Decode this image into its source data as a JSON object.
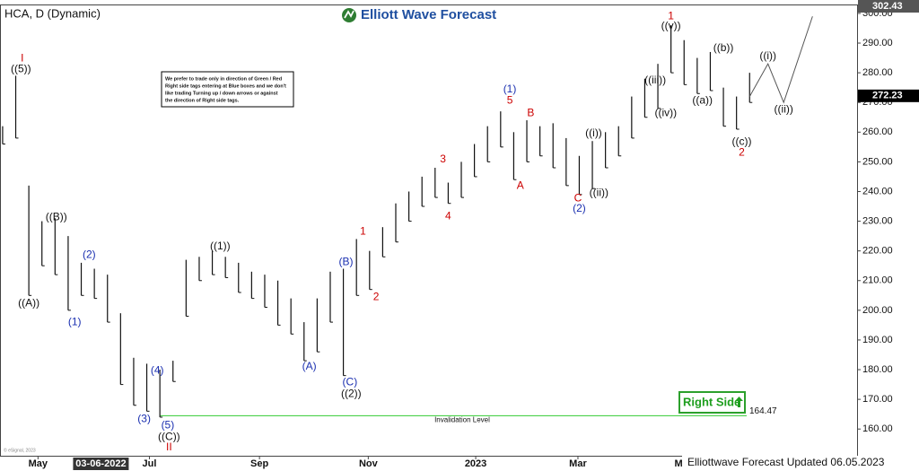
{
  "header": {
    "symbol": "HCA, D (Dynamic)",
    "logo": "Elliott Wave Forecast",
    "note": [
      "We prefer to trade only in direction of Green / Red",
      "Right side tags entering at Blue boxes and we don't",
      "like trading Turning up / down arrows or against",
      "the direction of Right side tags."
    ],
    "right_side": "Right Side",
    "footer": "Elliottwave Forecast Updated 06.05.2023",
    "copyright": "© eSignal, 2023"
  },
  "chart_data": {
    "type": "range-bar",
    "color": "#111111",
    "x": [
      0,
      1,
      2,
      3,
      4,
      5,
      6,
      7,
      8,
      9,
      10,
      11,
      12,
      13,
      14,
      15,
      16,
      17,
      18,
      19,
      20,
      21,
      22,
      23,
      24,
      25,
      26,
      27,
      28,
      29,
      30,
      31,
      32,
      33,
      34,
      35,
      36,
      37,
      38,
      39,
      40,
      41,
      42,
      43,
      44,
      45,
      46,
      47,
      48,
      49,
      50,
      51,
      52,
      53,
      54,
      55,
      56,
      57
    ],
    "high": [
      262,
      279,
      242,
      230,
      231,
      225,
      216,
      214,
      212,
      199,
      184,
      182,
      180,
      183,
      217,
      218,
      220,
      218,
      216,
      213,
      212,
      210,
      204,
      196,
      204,
      213,
      214,
      224,
      220,
      228,
      236,
      240,
      245,
      248,
      243,
      250,
      256,
      262,
      267,
      260,
      264,
      262,
      263,
      258,
      252,
      257,
      260,
      262,
      272,
      278,
      283,
      296,
      291,
      285,
      287,
      275,
      272,
      280
    ],
    "low": [
      256,
      258,
      205,
      215,
      212,
      200,
      205,
      204,
      196,
      175,
      168,
      166,
      164,
      176,
      198,
      210,
      212,
      211,
      206,
      204,
      201,
      195,
      192,
      183,
      186,
      196,
      178,
      205,
      207,
      218,
      223,
      230,
      235,
      238,
      236,
      238,
      245,
      250,
      255,
      244,
      250,
      252,
      248,
      242,
      239,
      241,
      248,
      252,
      258,
      265,
      268,
      280,
      276,
      273,
      274,
      262,
      261,
      270
    ],
    "xlim": [
      -0.2,
      65.2
    ],
    "ylim": [
      151,
      303
    ],
    "yticks": [
      {
        "value": 160,
        "label": "160.00"
      },
      {
        "value": 170,
        "label": "170.00"
      },
      {
        "value": 180,
        "label": "180.00"
      },
      {
        "value": 190,
        "label": "190.00"
      },
      {
        "value": 200,
        "label": "200.00"
      },
      {
        "value": 210,
        "label": "210.00"
      },
      {
        "value": 220,
        "label": "220.00"
      },
      {
        "value": 230,
        "label": "230.00"
      },
      {
        "value": 240,
        "label": "240.00"
      },
      {
        "value": 250,
        "label": "250.00"
      },
      {
        "value": 260,
        "label": "260.00"
      },
      {
        "value": 270,
        "label": "270.00"
      },
      {
        "value": 280,
        "label": "280.00"
      },
      {
        "value": 290,
        "label": "290.00"
      },
      {
        "value": 300,
        "label": "300.00"
      }
    ],
    "xticks": [
      {
        "value": 2.7,
        "label": "May"
      },
      {
        "value": 11.2,
        "label": "Jul"
      },
      {
        "value": 19.6,
        "label": "Sep"
      },
      {
        "value": 27.9,
        "label": "Nov"
      },
      {
        "value": 36.1,
        "label": "2023"
      },
      {
        "value": 43.9,
        "label": "Mar"
      },
      {
        "value": 52,
        "label": "May"
      }
    ],
    "cursor_date": {
      "value": 7.5,
      "label": "03-06-2022"
    },
    "price_labels": [
      {
        "value": 302.43,
        "color": "#555555"
      },
      {
        "value": 272.23,
        "color": "#000000"
      }
    ],
    "invalidation": {
      "value": 164.47,
      "label": "Invalidation Level",
      "color": "#33cc33"
    },
    "projection": {
      "x": [
        57,
        58.4,
        59.6,
        61.8
      ],
      "y": [
        272,
        283,
        270,
        299
      ],
      "color": "#555555"
    },
    "annotations": [
      {
        "text": "I",
        "x": 1.5,
        "y": 284.8,
        "color": "#cc0000"
      },
      {
        "text": "((5))",
        "x": 1.4,
        "y": 281.2,
        "color": "#111111"
      },
      {
        "text": "((A))",
        "x": 2,
        "y": 202.3,
        "color": "#111111"
      },
      {
        "text": "((B))",
        "x": 4.1,
        "y": 231.3,
        "color": "#111111"
      },
      {
        "text": "(1)",
        "x": 5.5,
        "y": 196,
        "color": "#1a2fb0"
      },
      {
        "text": "(2)",
        "x": 6.6,
        "y": 218.6,
        "color": "#1a2fb0"
      },
      {
        "text": "(3)",
        "x": 10.8,
        "y": 163.3,
        "color": "#1a2fb0"
      },
      {
        "text": "(4)",
        "x": 11.8,
        "y": 179.6,
        "color": "#1a2fb0"
      },
      {
        "text": "(5)",
        "x": 12.6,
        "y": 161.2,
        "color": "#1a2fb0"
      },
      {
        "text": "((C))",
        "x": 12.7,
        "y": 157.3,
        "color": "#111111"
      },
      {
        "text": "II",
        "x": 12.7,
        "y": 153.7,
        "color": "#cc0000"
      },
      {
        "text": "((1))",
        "x": 16.6,
        "y": 221.4,
        "color": "#111111"
      },
      {
        "text": "(A)",
        "x": 23.4,
        "y": 180.9,
        "color": "#1a2fb0"
      },
      {
        "text": "(B)",
        "x": 26.2,
        "y": 216.2,
        "color": "#1a2fb0"
      },
      {
        "text": "(C)",
        "x": 26.5,
        "y": 175.7,
        "color": "#1a2fb0"
      },
      {
        "text": "((2))",
        "x": 26.6,
        "y": 171.8,
        "color": "#111111"
      },
      {
        "text": "1",
        "x": 27.5,
        "y": 226.5,
        "color": "#cc0000"
      },
      {
        "text": "2",
        "x": 28.5,
        "y": 204.4,
        "color": "#cc0000"
      },
      {
        "text": "3",
        "x": 33.6,
        "y": 250.7,
        "color": "#cc0000"
      },
      {
        "text": "4",
        "x": 34,
        "y": 231.6,
        "color": "#cc0000"
      },
      {
        "text": "(1)",
        "x": 38.7,
        "y": 274.3,
        "color": "#1a2fb0"
      },
      {
        "text": "5",
        "x": 38.7,
        "y": 270.6,
        "color": "#cc0000"
      },
      {
        "text": "A",
        "x": 39.5,
        "y": 241.9,
        "color": "#cc0000"
      },
      {
        "text": "B",
        "x": 40.3,
        "y": 266.4,
        "color": "#cc0000"
      },
      {
        "text": "C",
        "x": 43.9,
        "y": 237.7,
        "color": "#cc0000"
      },
      {
        "text": "(2)",
        "x": 44,
        "y": 234.1,
        "color": "#1a2fb0"
      },
      {
        "text": "((i))",
        "x": 45.1,
        "y": 259.5,
        "color": "#111111"
      },
      {
        "text": "((ii))",
        "x": 45.5,
        "y": 239.5,
        "color": "#111111"
      },
      {
        "text": "((iii))",
        "x": 49.8,
        "y": 277.3,
        "color": "#111111"
      },
      {
        "text": "((iv))",
        "x": 50.6,
        "y": 266.4,
        "color": "#111111"
      },
      {
        "text": "1",
        "x": 51,
        "y": 299,
        "color": "#cc0000"
      },
      {
        "text": "((v))",
        "x": 51,
        "y": 295.7,
        "color": "#111111"
      },
      {
        "text": "((b))",
        "x": 55,
        "y": 288.2,
        "color": "#111111"
      },
      {
        "text": "((a))",
        "x": 53.4,
        "y": 270.6,
        "color": "#111111"
      },
      {
        "text": "((c))",
        "x": 56.4,
        "y": 256.7,
        "color": "#111111"
      },
      {
        "text": "2",
        "x": 56.4,
        "y": 253.1,
        "color": "#cc0000"
      },
      {
        "text": "((i))",
        "x": 58.4,
        "y": 285.5,
        "color": "#111111"
      },
      {
        "text": "((ii))",
        "x": 59.6,
        "y": 267.6,
        "color": "#111111"
      }
    ]
  }
}
